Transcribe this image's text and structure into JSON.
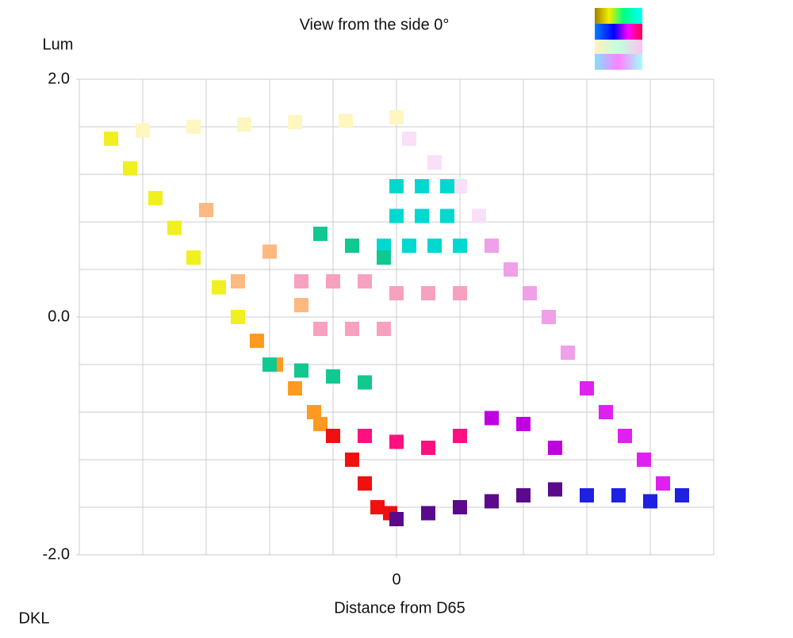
{
  "chart_data": {
    "type": "scatter",
    "title": "View from the side 0°",
    "ylabel": "Lum",
    "xlabel": "Distance from D65",
    "corner_label": "DKL",
    "xlim": [
      -0.5,
      0.5
    ],
    "ylim": [
      -2,
      2
    ],
    "xticks": [
      0
    ],
    "yticks": [
      {
        "value": -2,
        "label": "-2.0"
      },
      {
        "value": 0,
        "label": "0.0"
      },
      {
        "value": 2,
        "label": "2.0"
      }
    ],
    "grid": true,
    "series": [
      {
        "color": "#f0f020",
        "x": [
          -0.45,
          -0.42,
          -0.38,
          -0.35,
          -0.32,
          -0.28,
          -0.25
        ],
        "y": [
          1.5,
          1.25,
          1.0,
          0.75,
          0.5,
          0.25,
          0.0
        ]
      },
      {
        "color": "#ff9a20",
        "x": [
          -0.22,
          -0.19,
          -0.16,
          -0.13,
          -0.12
        ],
        "y": [
          -0.2,
          -0.4,
          -0.6,
          -0.8,
          -0.9
        ]
      },
      {
        "color": "#f01010",
        "x": [
          -0.1,
          -0.07,
          -0.05,
          -0.03,
          -0.01
        ],
        "y": [
          -1.0,
          -1.2,
          -1.4,
          -1.6,
          -1.65
        ]
      },
      {
        "color": "#fff6c0",
        "x": [
          -0.4,
          -0.32,
          -0.24,
          -0.16,
          -0.08,
          0.0
        ],
        "y": [
          1.57,
          1.6,
          1.62,
          1.64,
          1.65,
          1.68
        ]
      },
      {
        "color": "#f8e0f8",
        "x": [
          0.02,
          0.06,
          0.1,
          0.13
        ],
        "y": [
          1.5,
          1.3,
          1.1,
          0.85
        ]
      },
      {
        "color": "#f0a0e8",
        "x": [
          0.15,
          0.18,
          0.21,
          0.24,
          0.27
        ],
        "y": [
          0.6,
          0.4,
          0.2,
          0.0,
          -0.3
        ]
      },
      {
        "color": "#e020f0",
        "x": [
          0.3,
          0.33,
          0.36,
          0.39,
          0.42
        ],
        "y": [
          -0.6,
          -0.8,
          -1.0,
          -1.2,
          -1.4
        ]
      },
      {
        "color": "#2020e0",
        "x": [
          0.3,
          0.35,
          0.4,
          0.45
        ],
        "y": [
          -1.5,
          -1.5,
          -1.55,
          -1.5
        ]
      },
      {
        "color": "#5a0a8a",
        "x": [
          0.0,
          0.05,
          0.1,
          0.15,
          0.2,
          0.25
        ],
        "y": [
          -1.7,
          -1.65,
          -1.6,
          -1.55,
          -1.5,
          -1.45
        ]
      },
      {
        "color": "#00d8d0",
        "x": [
          0.0,
          0.04,
          0.08,
          0.0,
          0.04,
          0.08,
          -0.02,
          0.02,
          0.06,
          0.1
        ],
        "y": [
          1.1,
          1.1,
          1.1,
          0.85,
          0.85,
          0.85,
          0.6,
          0.6,
          0.6,
          0.6
        ]
      },
      {
        "color": "#f8a0c0",
        "x": [
          -0.15,
          -0.1,
          -0.05,
          0.0,
          0.05,
          0.1,
          -0.12,
          -0.07,
          -0.02
        ],
        "y": [
          0.3,
          0.3,
          0.3,
          0.2,
          0.2,
          0.2,
          -0.1,
          -0.1,
          -0.1
        ]
      },
      {
        "color": "#10c890",
        "x": [
          -0.2,
          -0.15,
          -0.1,
          -0.05,
          -0.12,
          -0.07,
          -0.02
        ],
        "y": [
          -0.4,
          -0.45,
          -0.5,
          -0.55,
          0.7,
          0.6,
          0.5
        ]
      },
      {
        "color": "#ffb880",
        "x": [
          -0.2,
          -0.25,
          -0.15,
          -0.3
        ],
        "y": [
          0.55,
          0.3,
          0.1,
          0.9
        ]
      },
      {
        "color": "#ff1080",
        "x": [
          -0.05,
          0.0,
          0.05,
          0.1
        ],
        "y": [
          -1.0,
          -1.05,
          -1.1,
          -1.0
        ]
      },
      {
        "color": "#c000e0",
        "x": [
          0.15,
          0.2,
          0.25
        ],
        "y": [
          -0.85,
          -0.9,
          -1.1
        ]
      }
    ]
  }
}
